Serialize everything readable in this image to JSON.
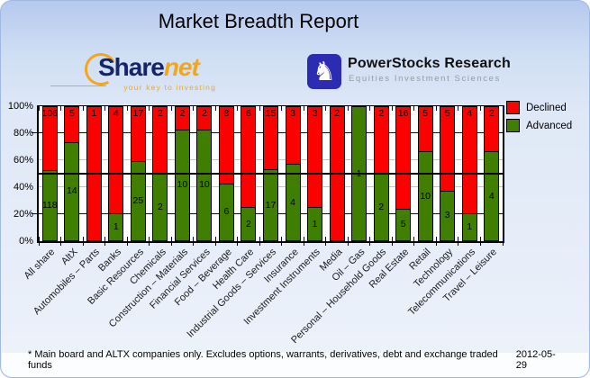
{
  "title": "Market Breadth Report",
  "logos": {
    "sharenet": {
      "name_part1": "Share",
      "name_part2": "net",
      "tagline": "your key to investing",
      "icon": "orange-arc-icon"
    },
    "powerstocks": {
      "icon": "knight-chess-icon",
      "knight_glyph": "♞",
      "name": "PowerStocks Research",
      "subtitle": "Equities Investment Sciences"
    }
  },
  "chart_data": {
    "type": "bar",
    "variant": "100%-stacked-vertical",
    "title": "",
    "xlabel": "",
    "ylabel": "",
    "ylim": [
      0,
      100
    ],
    "y_ticks": [
      "0%",
      "20%",
      "40%",
      "60%",
      "80%",
      "100%"
    ],
    "grid": "horizontal",
    "reference_line_percent": 50,
    "legend_position": "top-right-outside",
    "categories": [
      "All share",
      "AltX",
      "Automobiles – Parts",
      "Banks",
      "Basic Resources",
      "Chemicals",
      "Construction – Materials",
      "Financial Services",
      "Food – Beverage",
      "Health Care",
      "Industrial Goods – Services",
      "Insurance",
      "Investment Instruments",
      "Media",
      "Oil – Gas",
      "Personal – Household Goods",
      "Real Estate",
      "Retail",
      "Technology",
      "Telecommunications",
      "Travel – Leisure"
    ],
    "series": [
      {
        "name": "Declined",
        "color": "#fb0200",
        "values": [
          106,
          5,
          1,
          4,
          17,
          2,
          2,
          2,
          8,
          6,
          15,
          3,
          3,
          2,
          0,
          2,
          16,
          5,
          5,
          4,
          2
        ]
      },
      {
        "name": "Advanced",
        "color": "#3f7e01",
        "values": [
          118,
          14,
          0,
          1,
          25,
          2,
          10,
          10,
          6,
          2,
          17,
          4,
          1,
          0,
          1,
          2,
          5,
          10,
          3,
          1,
          4
        ]
      }
    ],
    "value_labels": "counts shown inside segments (declined at top, advanced centered in green segment)"
  },
  "colors": {
    "declined": "#fb0200",
    "advanced": "#3f7e01",
    "grid_navy": "#00007e",
    "grid_gray": "#c3c3c3",
    "plot_bg": "#ffffff",
    "page_top": "#b5c9ee",
    "page_bottom": "#eef3fb"
  },
  "footer": {
    "note": "* Main board and ALTX companies only. Excludes options, warrants, derivatives, debt and exchange traded funds",
    "date": "2012-05-29"
  }
}
